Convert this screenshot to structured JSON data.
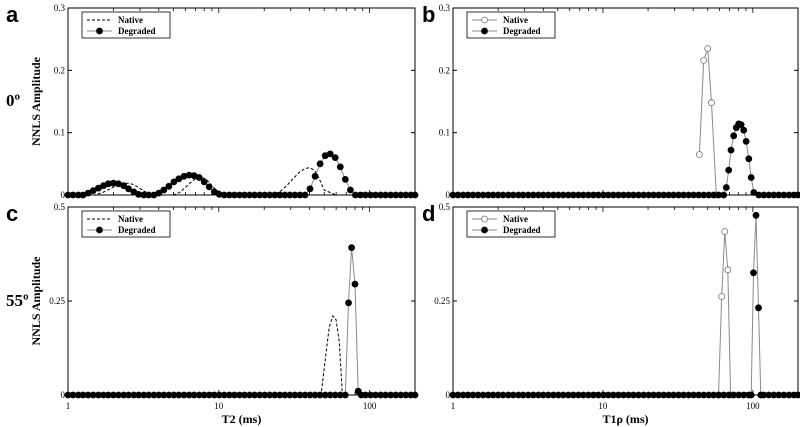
{
  "row_labels": {
    "top": "0º",
    "bottom": "55º"
  },
  "shared_ylabel": "NNLS Amplitude",
  "chart_data": [
    {
      "panel": "a",
      "type": "line",
      "xlabel": "",
      "ylabel": "NNLS Amplitude",
      "xscale": "log",
      "xlim": [
        1,
        200
      ],
      "ylim": [
        0,
        0.3
      ],
      "yticks": [
        "0",
        "0.1",
        "0.2",
        "0.3"
      ],
      "xticks": [],
      "legend": {
        "placement": "top-left",
        "entries": [
          "Native",
          "Degraded"
        ]
      },
      "series": [
        {
          "name": "Native",
          "style": "dashed",
          "x": [
            1,
            1.5,
            1.7,
            1.9,
            2.1,
            2.3,
            2.5,
            2.7,
            2.9,
            3.2,
            3.5,
            4,
            5,
            5.5,
            6,
            6.5,
            7,
            7.5,
            8,
            8.5,
            9,
            10,
            11,
            12,
            20,
            25,
            28,
            31,
            34,
            37,
            40,
            43,
            46,
            50,
            60,
            100,
            200
          ],
          "y": [
            0,
            0,
            0.004,
            0.01,
            0.015,
            0.018,
            0.019,
            0.017,
            0.013,
            0.006,
            0.002,
            0,
            0,
            0.004,
            0.012,
            0.02,
            0.026,
            0.028,
            0.027,
            0.022,
            0.015,
            0.004,
            0,
            0,
            0,
            0.004,
            0.014,
            0.026,
            0.036,
            0.042,
            0.044,
            0.04,
            0.028,
            0.008,
            0,
            0,
            0
          ]
        },
        {
          "name": "Degraded",
          "style": "solid-filled-circle",
          "x": [
            1,
            1.08,
            1.17,
            1.26,
            1.36,
            1.47,
            1.59,
            1.72,
            1.85,
            2,
            2.16,
            2.34,
            2.52,
            2.73,
            2.94,
            3.18,
            3.43,
            3.71,
            4,
            4.32,
            4.67,
            5.04,
            5.44,
            5.88,
            6.35,
            6.86,
            7.41,
            8,
            8.64,
            9.33,
            10.08,
            10.88,
            11.75,
            12.69,
            13.71,
            14.81,
            16,
            17.28,
            18.66,
            20.15,
            21.76,
            23.5,
            25.38,
            27.41,
            29.6,
            31.97,
            34.53,
            37.29,
            40.27,
            43.49,
            46.97,
            50.73,
            54.79,
            59.17,
            63.9,
            69.01,
            74.53,
            80.49,
            86.93,
            93.88,
            101.4,
            109.5,
            118.3,
            127.7,
            137.9,
            149,
            160.9,
            173.8,
            187.7,
            200
          ],
          "y": [
            0,
            0,
            0,
            0,
            0.003,
            0.007,
            0.011,
            0.015,
            0.018,
            0.019,
            0.018,
            0.015,
            0.01,
            0.005,
            0.001,
            0,
            0,
            0,
            0.003,
            0.008,
            0.014,
            0.021,
            0.026,
            0.03,
            0.032,
            0.031,
            0.028,
            0.021,
            0.013,
            0.005,
            0.001,
            0,
            0,
            0,
            0,
            0,
            0,
            0,
            0,
            0,
            0,
            0,
            0,
            0,
            0,
            0,
            0,
            0,
            0.01,
            0.03,
            0.05,
            0.063,
            0.066,
            0.06,
            0.045,
            0.025,
            0.008,
            0,
            0,
            0,
            0,
            0,
            0,
            0,
            0,
            0,
            0,
            0,
            0,
            0
          ]
        }
      ]
    },
    {
      "panel": "b",
      "type": "line",
      "xlabel": "",
      "ylabel": "",
      "xscale": "log",
      "xlim": [
        1,
        200
      ],
      "ylim": [
        0,
        0.3
      ],
      "yticks": [
        "0",
        "0.1",
        "0.2",
        "0.3"
      ],
      "xticks": [],
      "legend": {
        "placement": "top-left",
        "entries": [
          "Native",
          "Degraded"
        ]
      },
      "series": [
        {
          "name": "Native",
          "style": "solid-open-circle",
          "x": [
            44,
            47,
            50,
            53,
            57
          ],
          "y": [
            0.065,
            0.216,
            0.235,
            0.148,
            0
          ]
        },
        {
          "name": "Degraded",
          "style": "solid-filled-circle",
          "x": [
            1,
            1.08,
            1.17,
            1.26,
            1.36,
            1.47,
            1.59,
            1.72,
            1.85,
            2,
            2.16,
            2.34,
            2.52,
            2.73,
            2.94,
            3.18,
            3.43,
            3.71,
            4,
            4.32,
            4.67,
            5.04,
            5.44,
            5.88,
            6.35,
            6.86,
            7.41,
            8,
            8.64,
            9.33,
            10.08,
            10.88,
            11.75,
            12.69,
            13.71,
            14.81,
            16,
            17.28,
            18.66,
            20.15,
            21.76,
            23.5,
            25.38,
            27.41,
            29.6,
            31.97,
            34.53,
            37.29,
            40.27,
            43.49,
            46.97,
            50.73,
            54.79,
            59.17,
            63.9,
            66.5,
            69.01,
            71.5,
            74.53,
            77.5,
            80.49,
            83.5,
            86.93,
            90.2,
            93.88,
            97.5,
            101.4,
            109.5,
            118.3,
            127.7,
            137.9,
            149,
            160.9,
            173.8,
            187.7,
            200
          ],
          "y": [
            0,
            0,
            0,
            0,
            0,
            0,
            0,
            0,
            0,
            0,
            0,
            0,
            0,
            0,
            0,
            0,
            0,
            0,
            0,
            0,
            0,
            0,
            0,
            0,
            0,
            0,
            0,
            0,
            0,
            0,
            0,
            0,
            0,
            0,
            0,
            0,
            0,
            0,
            0,
            0,
            0,
            0,
            0,
            0,
            0,
            0,
            0,
            0,
            0,
            0,
            0,
            0,
            0,
            0,
            0,
            0.012,
            0.04,
            0.072,
            0.095,
            0.108,
            0.114,
            0.113,
            0.104,
            0.086,
            0.058,
            0.028,
            0.004,
            0,
            0,
            0,
            0,
            0,
            0,
            0,
            0,
            0
          ]
        }
      ]
    },
    {
      "panel": "c",
      "type": "line",
      "xlabel": "T2 (ms)",
      "ylabel": "NNLS Amplitude",
      "xscale": "log",
      "xlim": [
        1,
        200
      ],
      "ylim": [
        0,
        0.5
      ],
      "yticks": [
        "0",
        "0.25",
        "0.5"
      ],
      "xticks": [
        "1",
        "10",
        "100"
      ],
      "legend": {
        "placement": "top-left",
        "entries": [
          "Native",
          "Degraded"
        ]
      },
      "series": [
        {
          "name": "Native",
          "style": "dashed",
          "x": [
            1,
            45,
            48,
            51,
            54,
            57,
            60,
            63,
            66,
            200
          ],
          "y": [
            0,
            0,
            0.01,
            0.1,
            0.18,
            0.21,
            0.2,
            0.14,
            0,
            0
          ]
        },
        {
          "name": "Degraded",
          "style": "solid-filled-circle",
          "x": [
            1,
            1.08,
            1.17,
            1.26,
            1.36,
            1.47,
            1.59,
            1.72,
            1.85,
            2,
            2.16,
            2.34,
            2.52,
            2.73,
            2.94,
            3.18,
            3.43,
            3.71,
            4,
            4.32,
            4.67,
            5.04,
            5.44,
            5.88,
            6.35,
            6.86,
            7.41,
            8,
            8.64,
            9.33,
            10.08,
            10.88,
            11.75,
            12.69,
            13.71,
            14.81,
            16,
            17.28,
            18.66,
            20.15,
            21.76,
            23.5,
            25.38,
            27.41,
            29.6,
            31.97,
            34.53,
            37.29,
            40.27,
            43.49,
            46.97,
            50.73,
            54.79,
            59.17,
            63.9,
            69.01,
            72.5,
            76,
            80,
            84,
            88,
            93.88,
            101.4,
            109.5,
            118.3,
            127.7,
            137.9,
            149,
            160.9,
            173.8,
            187.7,
            200
          ],
          "y": [
            0,
            0,
            0,
            0,
            0,
            0,
            0,
            0,
            0,
            0,
            0,
            0,
            0,
            0,
            0,
            0,
            0,
            0,
            0,
            0,
            0,
            0,
            0,
            0,
            0,
            0,
            0,
            0,
            0,
            0,
            0,
            0,
            0,
            0,
            0,
            0,
            0,
            0,
            0,
            0,
            0,
            0,
            0,
            0,
            0,
            0,
            0,
            0,
            0,
            0,
            0,
            0,
            0,
            0,
            0,
            0,
            0.245,
            0.392,
            0.295,
            0.01,
            0,
            0,
            0,
            0,
            0,
            0,
            0,
            0,
            0,
            0,
            0,
            0
          ]
        }
      ]
    },
    {
      "panel": "d",
      "type": "line",
      "xlabel": "T1ρ (ms)",
      "ylabel": "",
      "xscale": "log",
      "xlim": [
        1,
        200
      ],
      "ylim": [
        0,
        0.5
      ],
      "yticks": [
        "0",
        "0.25",
        "0.5"
      ],
      "xticks": [
        "1",
        "10",
        "100"
      ],
      "legend": {
        "placement": "top-left",
        "entries": [
          "Native",
          "Degraded"
        ]
      },
      "series": [
        {
          "name": "Native",
          "style": "solid-open-circle",
          "x": [
            59,
            62,
            65,
            68,
            71
          ],
          "y": [
            0,
            0.262,
            0.435,
            0.333,
            0
          ]
        },
        {
          "name": "Degraded",
          "style": "solid-filled-circle",
          "x": [
            1,
            1.08,
            1.17,
            1.26,
            1.36,
            1.47,
            1.59,
            1.72,
            1.85,
            2,
            2.16,
            2.34,
            2.52,
            2.73,
            2.94,
            3.18,
            3.43,
            3.71,
            4,
            4.32,
            4.67,
            5.04,
            5.44,
            5.88,
            6.35,
            6.86,
            7.41,
            8,
            8.64,
            9.33,
            10.08,
            10.88,
            11.75,
            12.69,
            13.71,
            14.81,
            16,
            17.28,
            18.66,
            20.15,
            21.76,
            23.5,
            25.38,
            27.41,
            29.6,
            31.97,
            34.53,
            37.29,
            40.27,
            43.49,
            46.97,
            50.73,
            54.79,
            59.17,
            63.9,
            69.01,
            74.53,
            80.49,
            86.93,
            93.88,
            97.5,
            101,
            105,
            109,
            113,
            118.3,
            127.7,
            137.9,
            149,
            160.9,
            173.8,
            187.7,
            200
          ],
          "y": [
            0,
            0,
            0,
            0,
            0,
            0,
            0,
            0,
            0,
            0,
            0,
            0,
            0,
            0,
            0,
            0,
            0,
            0,
            0,
            0,
            0,
            0,
            0,
            0,
            0,
            0,
            0,
            0,
            0,
            0,
            0,
            0,
            0,
            0,
            0,
            0,
            0,
            0,
            0,
            0,
            0,
            0,
            0,
            0,
            0,
            0,
            0,
            0,
            0,
            0,
            0,
            0,
            0,
            0,
            0,
            0,
            0,
            0,
            0,
            0,
            0,
            0.325,
            0.478,
            0.232,
            0,
            0,
            0,
            0,
            0,
            0,
            0,
            0,
            0
          ]
        }
      ]
    }
  ]
}
